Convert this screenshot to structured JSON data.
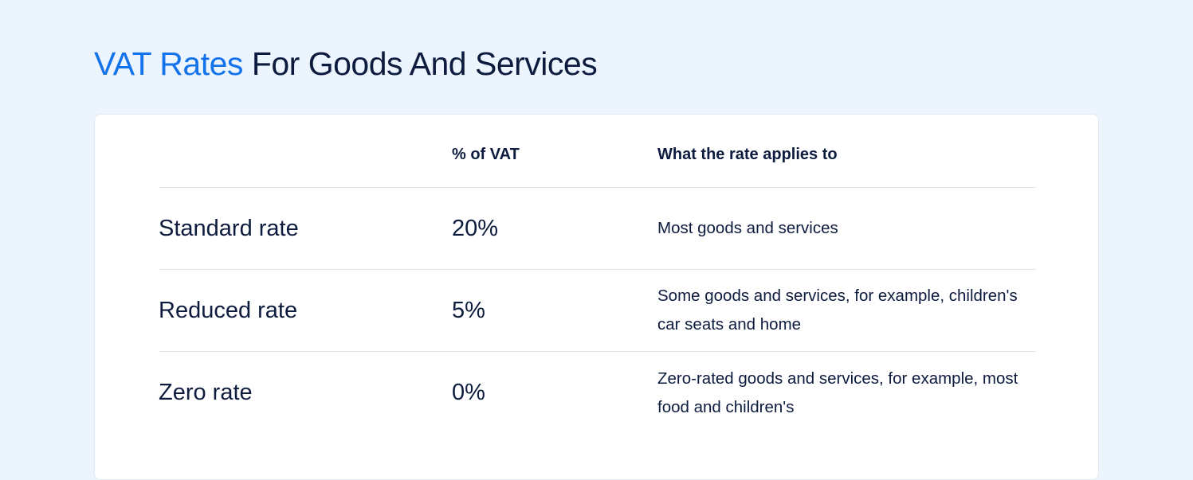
{
  "heading": {
    "accent": "VAT Rates",
    "rest": "For Goods And Services"
  },
  "table": {
    "headers": {
      "name": "",
      "percent": "% of VAT",
      "description": "What the rate applies to"
    },
    "rows": [
      {
        "name": "Standard rate",
        "percent": "20%",
        "description": "Most goods and services"
      },
      {
        "name": "Reduced rate",
        "percent": "5%",
        "description": "Some goods and services, for example, children's car seats and home"
      },
      {
        "name": "Zero rate",
        "percent": "0%",
        "description": "Zero-rated goods and services, for example, most food and children's"
      }
    ]
  },
  "colors": {
    "background": "#ecf4fe",
    "accent": "#1273ea",
    "text": "#0d1b3e",
    "card": "#ffffff"
  }
}
